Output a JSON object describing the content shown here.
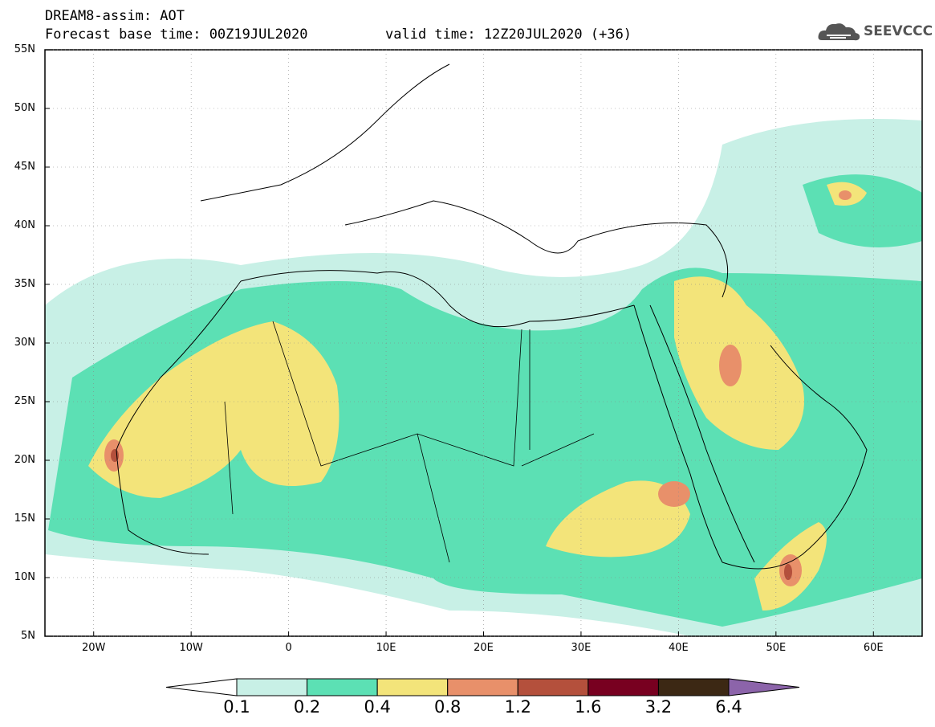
{
  "header": {
    "title": "DREAM8-assim: AOT",
    "base_time": "Forecast base time: 00Z19JUL2020",
    "valid_time": "valid time: 12Z20JUL2020 (+36)",
    "logo_text": "SEEVCCC",
    "logo_icon": "cloud-icon"
  },
  "axes": {
    "lat_ticks": [
      "55N",
      "50N",
      "45N",
      "40N",
      "35N",
      "30N",
      "25N",
      "20N",
      "15N",
      "10N",
      "5N"
    ],
    "lon_ticks": [
      "20W",
      "10W",
      "0",
      "10E",
      "20E",
      "30E",
      "40E",
      "50E",
      "60E"
    ],
    "lon_range": [
      -25,
      65
    ],
    "lat_range": [
      5,
      55
    ]
  },
  "colorbar": {
    "labels": [
      "0.1",
      "0.2",
      "0.4",
      "0.8",
      "1.2",
      "1.6",
      "3.2",
      "6.4"
    ],
    "colors": [
      "#c8f0e6",
      "#5ce0b4",
      "#f3e47a",
      "#e8906a",
      "#b4503c",
      "#780020",
      "#3c2814",
      "#8c64aa"
    ]
  },
  "colors": {
    "land_background": "#ffffff",
    "borders": "#000000"
  }
}
